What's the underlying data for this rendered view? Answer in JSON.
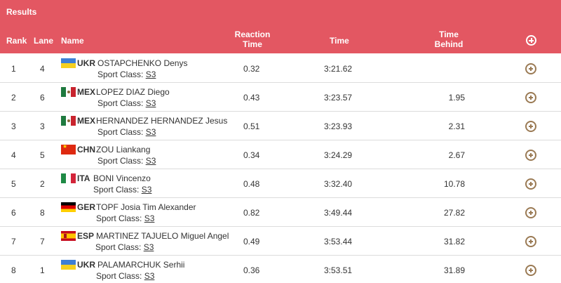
{
  "header": {
    "title": "Results",
    "columns": {
      "rank": "Rank",
      "lane": "Lane",
      "name": "Name",
      "reaction_1": "Reaction",
      "reaction_2": "Time",
      "time": "Time",
      "behind_1": "Time",
      "behind_2": "Behind"
    },
    "expand_all_icon": "plus-circle-icon"
  },
  "sport_class_label": "Sport Class:",
  "rows": [
    {
      "rank": "1",
      "lane": "4",
      "nation": "UKR",
      "flag": "flag-ukr",
      "athlete": "OSTAPCHENKO Denys",
      "sport_class": "S3",
      "reaction": "0.32",
      "time": "3:21.62",
      "behind": ""
    },
    {
      "rank": "2",
      "lane": "6",
      "nation": "MEX",
      "flag": "flag-mex",
      "athlete": "LOPEZ DIAZ Diego",
      "sport_class": "S3",
      "reaction": "0.43",
      "time": "3:23.57",
      "behind": "1.95"
    },
    {
      "rank": "3",
      "lane": "3",
      "nation": "MEX",
      "flag": "flag-mex",
      "athlete": "HERNANDEZ HERNANDEZ Jesus",
      "sport_class": "S3",
      "reaction": "0.51",
      "time": "3:23.93",
      "behind": "2.31"
    },
    {
      "rank": "4",
      "lane": "5",
      "nation": "CHN",
      "flag": "flag-chn",
      "athlete": "ZOU Liankang",
      "sport_class": "S3",
      "reaction": "0.34",
      "time": "3:24.29",
      "behind": "2.67"
    },
    {
      "rank": "5",
      "lane": "2",
      "nation": "ITA",
      "flag": "flag-ita",
      "athlete": "BONI Vincenzo",
      "sport_class": "S3",
      "reaction": "0.48",
      "time": "3:32.40",
      "behind": "10.78"
    },
    {
      "rank": "6",
      "lane": "8",
      "nation": "GER",
      "flag": "flag-ger",
      "athlete": "TOPF Josia Tim Alexander",
      "sport_class": "S3",
      "reaction": "0.82",
      "time": "3:49.44",
      "behind": "27.82"
    },
    {
      "rank": "7",
      "lane": "7",
      "nation": "ESP",
      "flag": "flag-esp",
      "athlete": "MARTINEZ TAJUELO Miguel Angel",
      "sport_class": "S3",
      "reaction": "0.49",
      "time": "3:53.44",
      "behind": "31.82"
    },
    {
      "rank": "8",
      "lane": "1",
      "nation": "UKR",
      "flag": "flag-ukr",
      "athlete": "PALAMARCHUK Serhii",
      "sport_class": "S3",
      "reaction": "0.36",
      "time": "3:53.51",
      "behind": "31.89"
    }
  ],
  "colors": {
    "header_bg": "#e35762",
    "expand_icon": "#9a7a54",
    "row_divider": "#dcdcdc"
  }
}
